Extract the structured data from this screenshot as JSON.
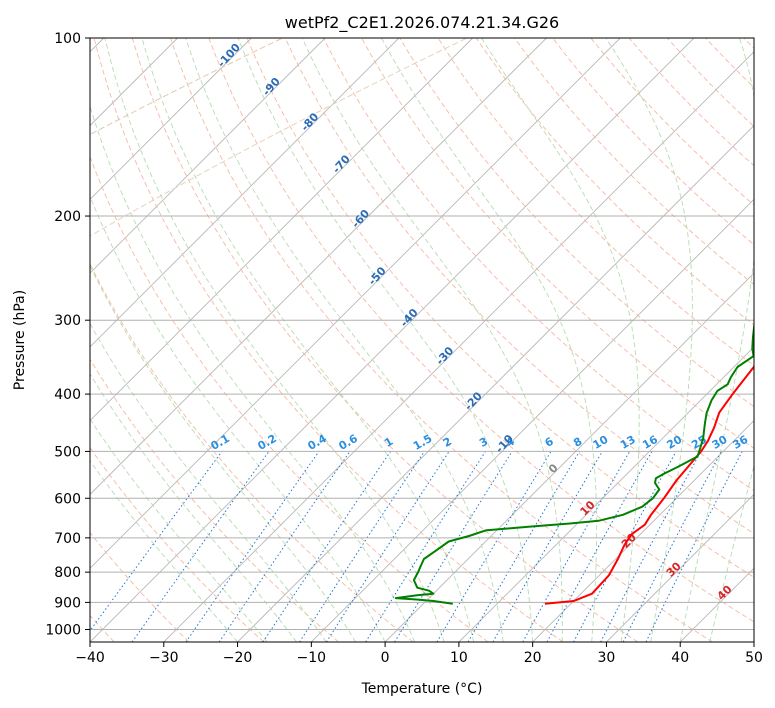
{
  "chart_data": {
    "type": "line",
    "title": "wetPf2_C2E1.2026.074.21.34.G26",
    "xlabel": "Temperature (°C)",
    "ylabel": "Pressure (hPa)",
    "xlim": [
      -40,
      50
    ],
    "ylim": [
      1050,
      100
    ],
    "x_ticks": [
      -40,
      -30,
      -20,
      -10,
      0,
      10,
      20,
      30,
      40,
      50
    ],
    "y_ticks": [
      100,
      200,
      300,
      400,
      500,
      600,
      700,
      800,
      900,
      1000
    ],
    "series": [
      {
        "name": "Temperature",
        "color": "#ff0000",
        "points": [
          [
            16.5,
            905
          ],
          [
            20,
            895
          ],
          [
            21.5,
            870
          ],
          [
            21.3,
            810
          ],
          [
            20.3,
            760
          ],
          [
            19.3,
            720
          ],
          [
            18.8,
            690
          ],
          [
            19.3,
            665
          ],
          [
            18.8,
            640
          ],
          [
            18.3,
            600
          ],
          [
            17.6,
            560
          ],
          [
            17.3,
            530
          ],
          [
            17.0,
            500
          ],
          [
            16.5,
            480
          ],
          [
            15.5,
            455
          ],
          [
            14.2,
            430
          ],
          [
            13.5,
            400
          ],
          [
            12.7,
            360
          ],
          [
            11.5,
            335
          ],
          [
            9.8,
            315
          ],
          [
            7.5,
            295
          ],
          [
            4.5,
            275
          ],
          [
            1.5,
            255
          ],
          [
            -1.5,
            237
          ],
          [
            -4.0,
            222
          ],
          [
            -6.5,
            206
          ],
          [
            -7.0,
            200
          ],
          [
            -4.5,
            190
          ],
          [
            -2.0,
            180
          ],
          [
            -1.0,
            170
          ],
          [
            -2.0,
            160
          ],
          [
            -3.5,
            150
          ],
          [
            -3.0,
            140
          ],
          [
            -2.8,
            130
          ],
          [
            -3.5,
            122
          ],
          [
            -1.5,
            116
          ],
          [
            -1.2,
            112
          ],
          [
            0.0,
            106
          ],
          [
            1.3,
            100
          ]
        ]
      },
      {
        "name": "Dewpoint",
        "color": "#008000",
        "points": [
          [
            4.0,
            905
          ],
          [
            1.0,
            895
          ],
          [
            -1.5,
            890
          ],
          [
            -4.5,
            885
          ],
          [
            -2.0,
            875
          ],
          [
            0.0,
            870
          ],
          [
            -1.0,
            860
          ],
          [
            -3.0,
            850
          ],
          [
            -4.5,
            825
          ],
          [
            -5.0,
            800
          ],
          [
            -5.5,
            780
          ],
          [
            -6.0,
            760
          ],
          [
            -5.5,
            735
          ],
          [
            -5.0,
            710
          ],
          [
            -3.0,
            695
          ],
          [
            -1.5,
            680
          ],
          [
            4.0,
            670
          ],
          [
            9.0,
            662
          ],
          [
            12.5,
            655
          ],
          [
            15.0,
            640
          ],
          [
            16.5,
            620
          ],
          [
            16.8,
            600
          ],
          [
            16.5,
            580
          ],
          [
            15.0,
            565
          ],
          [
            14.5,
            555
          ],
          [
            15.0,
            545
          ],
          [
            16.0,
            530
          ],
          [
            17.2,
            510
          ],
          [
            16.5,
            495
          ],
          [
            15.5,
            475
          ],
          [
            14.5,
            460
          ],
          [
            13.5,
            445
          ],
          [
            12.5,
            430
          ],
          [
            11.5,
            410
          ],
          [
            11.0,
            395
          ],
          [
            11.5,
            385
          ],
          [
            11.0,
            375
          ],
          [
            10.5,
            360
          ],
          [
            11.2,
            345
          ],
          [
            10.0,
            335
          ],
          [
            8.5,
            320
          ],
          [
            6.5,
            300
          ],
          [
            4.5,
            282
          ],
          [
            2.5,
            262
          ],
          [
            0.5,
            245
          ],
          [
            -1.5,
            232
          ],
          [
            -3.5,
            218
          ],
          [
            -5.5,
            203
          ],
          [
            -6.5,
            198
          ],
          [
            -8.0,
            190
          ],
          [
            -9.5,
            183
          ],
          [
            -10.0,
            175
          ],
          [
            -10.5,
            168
          ],
          [
            -10.3,
            160
          ],
          [
            -10.0,
            150
          ],
          [
            -9.5,
            140
          ],
          [
            -9.3,
            130
          ],
          [
            -9.0,
            125
          ],
          [
            -7.5,
            118
          ],
          [
            -5.5,
            112
          ],
          [
            -4.0,
            108
          ],
          [
            -3.0,
            104
          ],
          [
            -1.0,
            100
          ]
        ]
      }
    ],
    "dry_adiabat_labels": [
      "-100",
      "-90",
      "-80",
      "-70",
      "-60",
      "-50",
      "-40",
      "-30",
      "-20",
      "-10"
    ],
    "dry_adiabat_label_values": [
      -100,
      -90,
      -80,
      -70,
      -60,
      -50,
      -40,
      -30,
      -20,
      -10
    ],
    "moist_adiabat_labels": [
      "0",
      "10",
      "20",
      "30",
      "40"
    ],
    "moist_adiabat_label_values": [
      0,
      10,
      20,
      30,
      40
    ],
    "mixing_ratio_labels": [
      "0.1",
      "0.2",
      "0.4",
      "0.6",
      "1",
      "1.5",
      "2",
      "3",
      "4",
      "6",
      "8",
      "10",
      "13",
      "16",
      "20",
      "25",
      "30",
      "36"
    ],
    "mixing_ratio_values": [
      0.1,
      0.2,
      0.4,
      0.6,
      1,
      1.5,
      2,
      3,
      4,
      6,
      8,
      10,
      13,
      16,
      20,
      25,
      30,
      36
    ],
    "grid": true
  }
}
